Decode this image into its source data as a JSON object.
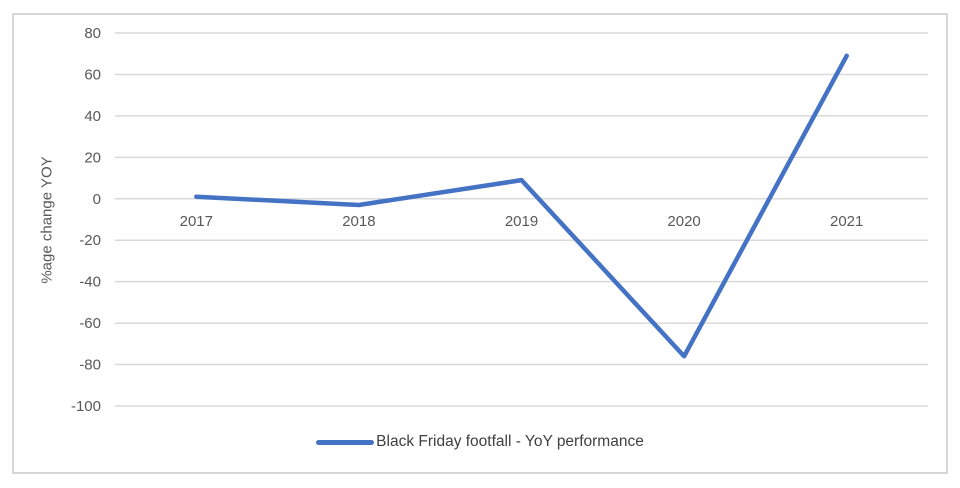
{
  "chart_data": {
    "type": "line",
    "title": "",
    "xlabel": "",
    "ylabel": "%age change YOY",
    "categories": [
      "2017",
      "2018",
      "2019",
      "2020",
      "2021"
    ],
    "series": [
      {
        "name": "Black Friday footfall - YoY performance",
        "values": [
          1,
          -3,
          9,
          -76,
          69
        ],
        "color": "#4472c4"
      }
    ],
    "ylim": [
      -100,
      80
    ],
    "yticks": [
      80,
      60,
      40,
      20,
      0,
      -20,
      -40,
      -60,
      -80,
      -100
    ],
    "grid": true,
    "legend_position": "bottom"
  },
  "colors": {
    "line": "#4472c4",
    "gridline": "#d9d9d9",
    "axis_text": "#595959",
    "legend_text": "#404040",
    "frame_border": "#d6d6d6",
    "background": "#ffffff"
  }
}
